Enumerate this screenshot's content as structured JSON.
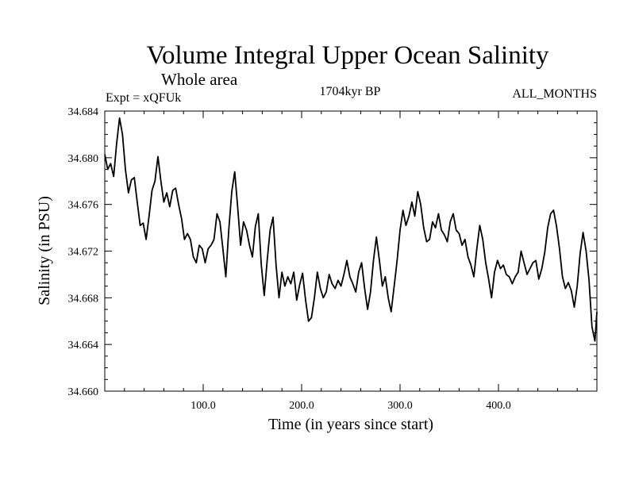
{
  "chart_data": {
    "type": "line",
    "title": "Volume Integral Upper Ocean Salinity",
    "subtitle": "Whole area",
    "experiment": "Expt = xQFUk",
    "period": "1704kyr BP",
    "months": "ALL_MONTHS",
    "xlabel": "Time (in years since start)",
    "ylabel": "Salinity (in PSU)",
    "xlim": [
      0,
      500
    ],
    "ylim": [
      34.66,
      34.684
    ],
    "xticks": [
      100,
      200,
      300,
      400
    ],
    "xtick_labels": [
      "100.0",
      "200.0",
      "300.0",
      "400.0"
    ],
    "yticks": [
      34.66,
      34.664,
      34.668,
      34.672,
      34.676,
      34.68,
      34.684
    ],
    "ytick_labels": [
      "34.660",
      "34.664",
      "34.668",
      "34.672",
      "34.676",
      "34.680",
      "34.684"
    ],
    "series": [
      {
        "name": "Salinity",
        "color": "#000000",
        "x": [
          0,
          3,
          6,
          9,
          12,
          15,
          18,
          21,
          24,
          27,
          30,
          33,
          36,
          39,
          42,
          45,
          48,
          51,
          54,
          57,
          60,
          63,
          66,
          69,
          72,
          75,
          78,
          81,
          84,
          87,
          90,
          93,
          96,
          99,
          102,
          105,
          108,
          111,
          114,
          117,
          120,
          123,
          126,
          129,
          132,
          135,
          138,
          141,
          144,
          147,
          150,
          153,
          156,
          159,
          162,
          165,
          168,
          171,
          174,
          177,
          180,
          183,
          186,
          189,
          192,
          195,
          198,
          201,
          204,
          207,
          210,
          213,
          216,
          219,
          222,
          225,
          228,
          231,
          234,
          237,
          240,
          243,
          246,
          249,
          252,
          255,
          258,
          261,
          264,
          267,
          270,
          273,
          276,
          279,
          282,
          285,
          288,
          291,
          294,
          297,
          300,
          303,
          306,
          309,
          312,
          315,
          318,
          321,
          324,
          327,
          330,
          333,
          336,
          339,
          342,
          345,
          348,
          351,
          354,
          357,
          360,
          363,
          366,
          369,
          372,
          375,
          378,
          381,
          384,
          387,
          390,
          393,
          396,
          399,
          402,
          405,
          408,
          411,
          414,
          417,
          420,
          423,
          426,
          429,
          432,
          435,
          438,
          441,
          444,
          447,
          450,
          453,
          456,
          459,
          462,
          465,
          468,
          471,
          474,
          477,
          480,
          483,
          486,
          489,
          492,
          495,
          498,
          500
        ],
        "values": [
          34.6803,
          34.679,
          34.6795,
          34.6784,
          34.6812,
          34.6834,
          34.682,
          34.679,
          34.677,
          34.6781,
          34.6783,
          34.6762,
          34.6742,
          34.6744,
          34.673,
          34.675,
          34.6772,
          34.678,
          34.6801,
          34.678,
          34.6762,
          34.677,
          34.6758,
          34.6772,
          34.6774,
          34.676,
          34.6748,
          34.673,
          34.6735,
          34.673,
          34.6715,
          34.671,
          34.6725,
          34.6722,
          34.671,
          34.6722,
          34.6725,
          34.673,
          34.6752,
          34.6745,
          34.6722,
          34.6698,
          34.6738,
          34.6771,
          34.6788,
          34.6758,
          34.6725,
          34.6745,
          34.6738,
          34.6725,
          34.6715,
          34.6741,
          34.6752,
          34.6708,
          34.6682,
          34.6712,
          34.6738,
          34.6749,
          34.6708,
          34.668,
          34.6702,
          34.669,
          34.6698,
          34.6692,
          34.6702,
          34.6678,
          34.6691,
          34.6701,
          34.6678,
          34.666,
          34.6663,
          34.668,
          34.6702,
          34.6688,
          34.668,
          34.6685,
          34.67,
          34.6692,
          34.6688,
          34.6695,
          34.669,
          34.67,
          34.6712,
          34.6698,
          34.6692,
          34.6685,
          34.6702,
          34.671,
          34.6688,
          34.667,
          34.6685,
          34.6712,
          34.6732,
          34.6712,
          34.669,
          34.6698,
          34.668,
          34.6668,
          34.669,
          34.6712,
          34.6738,
          34.6755,
          34.6742,
          34.675,
          34.6762,
          34.675,
          34.6771,
          34.676,
          34.674,
          34.6728,
          34.673,
          34.6745,
          34.674,
          34.6752,
          34.6738,
          34.6734,
          34.6728,
          34.6745,
          34.6752,
          34.6738,
          34.6735,
          34.6725,
          34.673,
          34.6715,
          34.6708,
          34.6698,
          34.6722,
          34.6742,
          34.673,
          34.671,
          34.6696,
          34.668,
          34.6702,
          34.6712,
          34.6705,
          34.6708,
          34.67,
          34.6698,
          34.6692,
          34.6698,
          34.6702,
          34.672,
          34.671,
          34.67,
          34.6705,
          34.671,
          34.6712,
          34.6696,
          34.6705,
          34.6719,
          34.674,
          34.6752,
          34.6755,
          34.6741,
          34.6722,
          34.6698,
          34.6688,
          34.6693,
          34.6686,
          34.6672,
          34.669,
          34.6718,
          34.6736,
          34.672,
          34.6695,
          34.6655,
          34.6643,
          34.6668
        ]
      }
    ]
  }
}
